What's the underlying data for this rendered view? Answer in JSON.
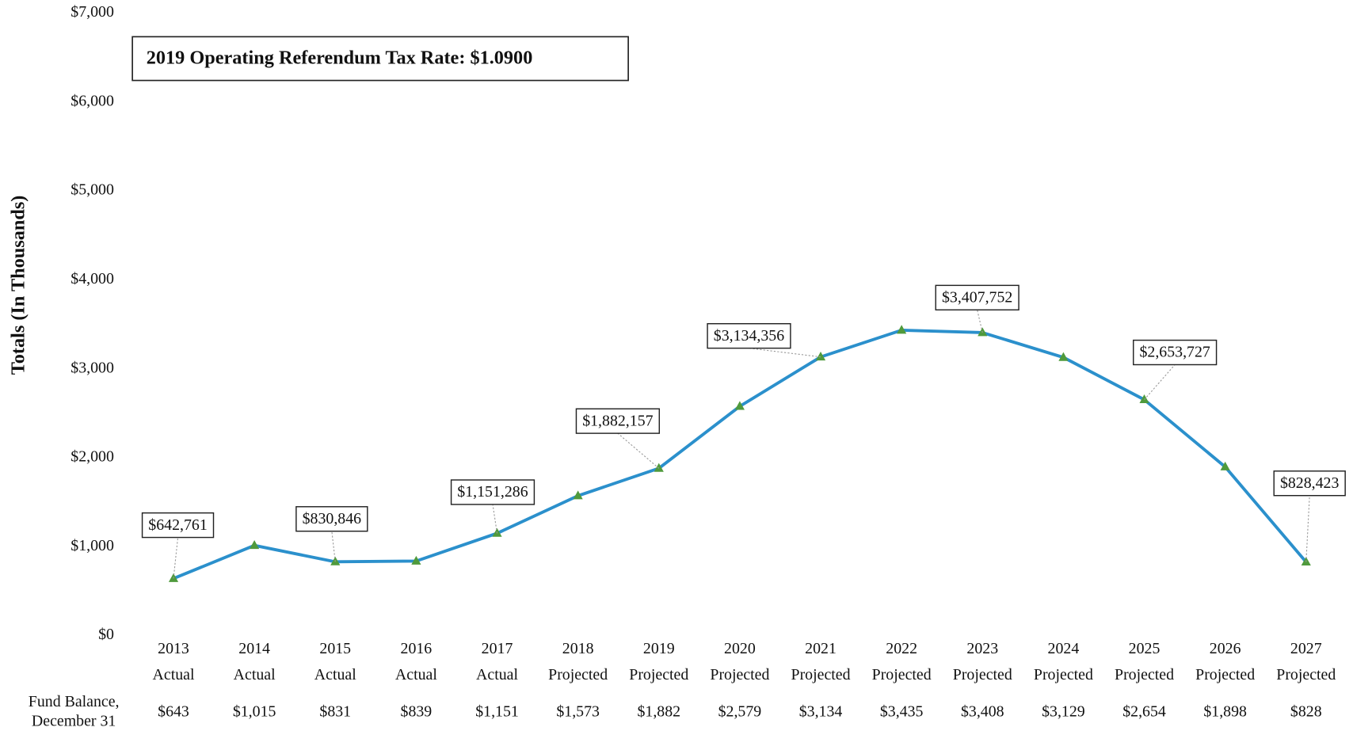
{
  "chart_data": {
    "type": "line",
    "annotation": "2019 Operating Referendum Tax Rate: $1.0900",
    "y_label": "Totals (In Thousands)",
    "categories": [
      "2013",
      "2014",
      "2015",
      "2016",
      "2017",
      "2018",
      "2019",
      "2020",
      "2021",
      "2022",
      "2023",
      "2024",
      "2025",
      "2026",
      "2027"
    ],
    "category_kinds": [
      "Actual",
      "Actual",
      "Actual",
      "Actual",
      "Actual",
      "Projected",
      "Projected",
      "Projected",
      "Projected",
      "Projected",
      "Projected",
      "Projected",
      "Projected",
      "Projected",
      "Projected"
    ],
    "values": [
      642.761,
      1015,
      830.846,
      839,
      1151.286,
      1573,
      1882.157,
      2579,
      3134.356,
      3435,
      3407.752,
      3129,
      2653.727,
      1898,
      828.423
    ],
    "value_labels": [
      "$642,761",
      null,
      "$830,846",
      null,
      "$1,151,286",
      null,
      "$1,882,157",
      null,
      "$3,134,356",
      null,
      "$3,407,752",
      null,
      "$2,653,727",
      null,
      "$828,423"
    ],
    "row_title": [
      "Fund Balance,",
      "December 31"
    ],
    "row_labels": [
      "$643",
      "$1,015",
      "$831",
      "$839",
      "$1,151",
      "$1,573",
      "$1,882",
      "$2,579",
      "$3,134",
      "$3,435",
      "$3,408",
      "$3,129",
      "$2,654",
      "$1,898",
      "$828"
    ],
    "color": "#2b90cc",
    "marker_color": "#4f9a3c",
    "ylim": [
      0,
      7000
    ],
    "yticks": [
      {
        "value": 0,
        "label": "$0"
      },
      {
        "value": 1000,
        "label": "$1,000"
      },
      {
        "value": 2000,
        "label": "$2,000"
      },
      {
        "value": 3000,
        "label": "$3,000"
      },
      {
        "value": 4000,
        "label": "$4,000"
      },
      {
        "value": 5000,
        "label": "$5,000"
      },
      {
        "value": 6000,
        "label": "$6,000"
      },
      {
        "value": 7000,
        "label": "$7,000"
      }
    ],
    "grid": false
  }
}
